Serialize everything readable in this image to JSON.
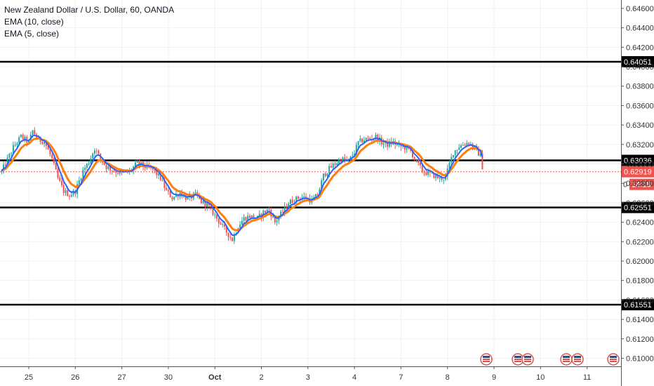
{
  "chart_data": {
    "type": "candlestick",
    "legend": [
      "New Zealand Dollar / U.S. Dollar, 60, OANDA",
      "EMA (10, close)",
      "EMA (5, close)"
    ],
    "ylim": [
      0.6096,
      0.6465
    ],
    "y_ticks": [
      "0.64600",
      "0.64400",
      "0.64200",
      "0.64000",
      "0.63800",
      "0.63600",
      "0.63400",
      "0.63200",
      "0.63000",
      "0.62800",
      "0.62600",
      "0.62400",
      "0.62200",
      "0.62000",
      "0.61800",
      "0.61600",
      "0.61400",
      "0.61200",
      "0.61000"
    ],
    "y_tick_values": [
      0.646,
      0.644,
      0.642,
      0.64,
      0.638,
      0.636,
      0.634,
      0.632,
      0.63,
      0.628,
      0.626,
      0.624,
      0.622,
      0.62,
      0.618,
      0.616,
      0.614,
      0.612,
      0.61
    ],
    "x_ticks": [
      "25",
      "26",
      "27",
      "30",
      "Oct",
      "2",
      "3",
      "4",
      "7",
      "8",
      "9",
      "10",
      "11"
    ],
    "x_tick_index": [
      0,
      24,
      48,
      72,
      96,
      120,
      144,
      168,
      192,
      216,
      240,
      264,
      288
    ],
    "horizontal_levels": [
      {
        "label": "0.64051",
        "value": 0.64051
      },
      {
        "label": "0.63036",
        "value": 0.63036
      },
      {
        "label": "0.62551",
        "value": 0.62551
      },
      {
        "label": "0.61551",
        "value": 0.61551
      }
    ],
    "last_price": {
      "label": "0.62919",
      "value": 0.62919
    },
    "countdown": {
      "label": "14:18"
    },
    "axis_partial_label": "0",
    "price_path": [
      [
        -14,
        0.6292
      ],
      [
        -8,
        0.6317
      ],
      [
        -4,
        0.6328
      ],
      [
        0,
        0.6322
      ],
      [
        2,
        0.6334
      ],
      [
        5,
        0.6325
      ],
      [
        8,
        0.6323
      ],
      [
        12,
        0.6305
      ],
      [
        15,
        0.6285
      ],
      [
        18,
        0.6272
      ],
      [
        21,
        0.6268
      ],
      [
        24,
        0.6272
      ],
      [
        28,
        0.6293
      ],
      [
        31,
        0.6302
      ],
      [
        34,
        0.6316
      ],
      [
        37,
        0.6305
      ],
      [
        40,
        0.6297
      ],
      [
        44,
        0.6293
      ],
      [
        48,
        0.629
      ],
      [
        52,
        0.6292
      ],
      [
        56,
        0.6301
      ],
      [
        60,
        0.6297
      ],
      [
        64,
        0.6294
      ],
      [
        68,
        0.6285
      ],
      [
        71,
        0.6272
      ],
      [
        74,
        0.6265
      ],
      [
        78,
        0.627
      ],
      [
        82,
        0.6264
      ],
      [
        86,
        0.6268
      ],
      [
        89,
        0.6261
      ],
      [
        92,
        0.6258
      ],
      [
        95,
        0.625
      ],
      [
        99,
        0.6238
      ],
      [
        102,
        0.623
      ],
      [
        105,
        0.6222
      ],
      [
        108,
        0.6236
      ],
      [
        111,
        0.6244
      ],
      [
        114,
        0.6246
      ],
      [
        118,
        0.6244
      ],
      [
        121,
        0.625
      ],
      [
        124,
        0.6253
      ],
      [
        127,
        0.624
      ],
      [
        130,
        0.6248
      ],
      [
        134,
        0.626
      ],
      [
        137,
        0.6263
      ],
      [
        140,
        0.6266
      ],
      [
        143,
        0.6265
      ],
      [
        146,
        0.6262
      ],
      [
        149,
        0.6268
      ],
      [
        152,
        0.6288
      ],
      [
        155,
        0.6295
      ],
      [
        158,
        0.63
      ],
      [
        161,
        0.6305
      ],
      [
        165,
        0.6303
      ],
      [
        168,
        0.6312
      ],
      [
        170,
        0.6322
      ],
      [
        173,
        0.6325
      ],
      [
        176,
        0.6326
      ],
      [
        179,
        0.6328
      ],
      [
        182,
        0.6322
      ],
      [
        185,
        0.632
      ],
      [
        188,
        0.6322
      ],
      [
        191,
        0.6318
      ],
      [
        194,
        0.6317
      ],
      [
        197,
        0.6313
      ],
      [
        200,
        0.6302
      ],
      [
        203,
        0.6293
      ],
      [
        206,
        0.629
      ],
      [
        209,
        0.6288
      ],
      [
        212,
        0.6285
      ],
      [
        215,
        0.6286
      ],
      [
        217,
        0.63
      ],
      [
        219,
        0.6312
      ],
      [
        222,
        0.6318
      ],
      [
        225,
        0.6321
      ],
      [
        227,
        0.6322
      ],
      [
        230,
        0.6316
      ],
      [
        233,
        0.6308
      ],
      [
        234,
        0.6297
      ],
      [
        234.5,
        0.62919
      ]
    ]
  }
}
